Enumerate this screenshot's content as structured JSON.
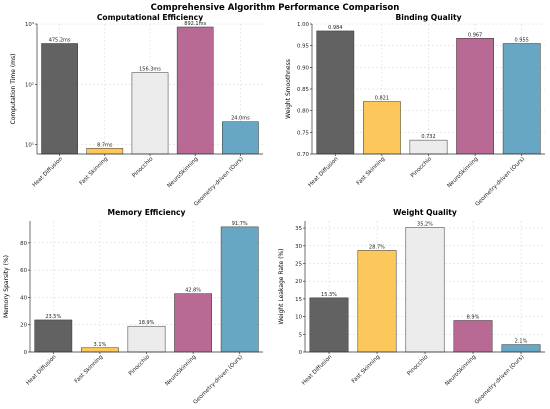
{
  "title": "Comprehensive Algorithm Performance Comparison",
  "colors": [
    "#555555",
    "#FDC34D",
    "#EAEAEA",
    "#B25D8B",
    "#5BA0BE"
  ],
  "chart_data": [
    {
      "type": "bar",
      "title": "Computational Efficiency",
      "ylabel": "Computation Time (ms)",
      "yscale": "log",
      "ylim": [
        7,
        1000
      ],
      "yticks": [
        10,
        100,
        1000
      ],
      "yticklabels": [
        "10¹",
        "10²",
        "10³"
      ],
      "categories": [
        "Heat Diffusion",
        "Fast Skinning",
        "Pinocchio",
        "NeuroSkinning",
        "Geometry-driven (Ours)"
      ],
      "values": [
        475.2,
        8.7,
        156.3,
        892.1,
        24.0
      ],
      "labels": [
        "475.2ms",
        "8.7ms",
        "156.3ms",
        "892.1ms",
        "24.0ms"
      ],
      "grid": true
    },
    {
      "type": "bar",
      "title": "Binding Quality",
      "ylabel": "Weight Smoothness",
      "yscale": "linear",
      "ylim": [
        0.7,
        1.0
      ],
      "yticks": [
        0.7,
        0.75,
        0.8,
        0.85,
        0.9,
        0.95,
        1.0
      ],
      "yticklabels": [
        "0.70",
        "0.75",
        "0.80",
        "0.85",
        "0.90",
        "0.95",
        "1.00"
      ],
      "categories": [
        "Heat Diffusion",
        "Fast Skinning",
        "Pinocchio",
        "NeuroSkinning",
        "Geometry-driven (Ours)"
      ],
      "values": [
        0.984,
        0.821,
        0.732,
        0.967,
        0.955
      ],
      "labels": [
        "0.984",
        "0.821",
        "0.732",
        "0.967",
        "0.955"
      ],
      "grid": true
    },
    {
      "type": "bar",
      "title": "Memory Efficiency",
      "ylabel": "Memory Sparsity (%)",
      "yscale": "linear",
      "ylim": [
        0,
        96
      ],
      "yticks": [
        0,
        20,
        40,
        60,
        80
      ],
      "yticklabels": [
        "0",
        "20",
        "40",
        "60",
        "80"
      ],
      "categories": [
        "Heat Diffusion",
        "Fast Skinning",
        "Pinocchio",
        "NeuroSkinning",
        "Geometry-driven (Ours)"
      ],
      "values": [
        23.5,
        3.1,
        18.9,
        42.8,
        91.7
      ],
      "labels": [
        "23.5%",
        "3.1%",
        "18.9%",
        "42.8%",
        "91.7%"
      ],
      "grid": true
    },
    {
      "type": "bar",
      "title": "Weight Quality",
      "ylabel": "Weight Leakage Rate (%)",
      "yscale": "linear",
      "ylim": [
        0,
        37
      ],
      "yticks": [
        0,
        5,
        10,
        15,
        20,
        25,
        30,
        35
      ],
      "yticklabels": [
        "0",
        "5",
        "10",
        "15",
        "20",
        "25",
        "30",
        "35"
      ],
      "categories": [
        "Heat Diffusion",
        "Fast Skinning",
        "Pinocchio",
        "NeuroSkinning",
        "Geometry-driven (Ours)"
      ],
      "values": [
        15.3,
        28.7,
        35.2,
        8.9,
        2.1
      ],
      "labels": [
        "15.3%",
        "28.7%",
        "35.2%",
        "8.9%",
        "2.1%"
      ],
      "grid": true
    }
  ]
}
